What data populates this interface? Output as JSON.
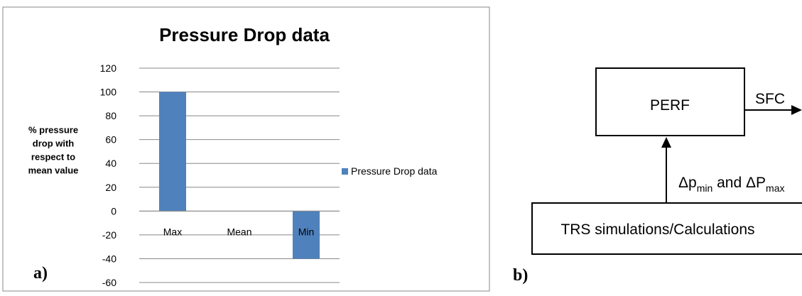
{
  "panel_a_label": "a)",
  "panel_b_label": "b)",
  "chart_data": {
    "type": "bar",
    "title": "Pressure Drop data",
    "ylabel_lines": [
      "% pressure",
      "drop with",
      "respect to",
      "mean value"
    ],
    "categories": [
      "Max",
      "Mean",
      "Min"
    ],
    "series": [
      {
        "name": "Pressure Drop data",
        "values": [
          100,
          0,
          -40
        ]
      }
    ],
    "ylim": [
      -60,
      120
    ],
    "yticks": [
      120,
      100,
      80,
      60,
      40,
      20,
      0,
      -20,
      -40,
      -60
    ],
    "grid": true,
    "legend_position": "right",
    "bar_color": "#4F81BD"
  },
  "diagram": {
    "perf_label": "PERF",
    "output_label": "SFC",
    "trs_label": "TRS simulations/Calculations",
    "arrow_label": {
      "delta1": "Δp",
      "sub1": "min",
      "conj": " and ",
      "delta2": "ΔP",
      "sub2": "max"
    }
  }
}
